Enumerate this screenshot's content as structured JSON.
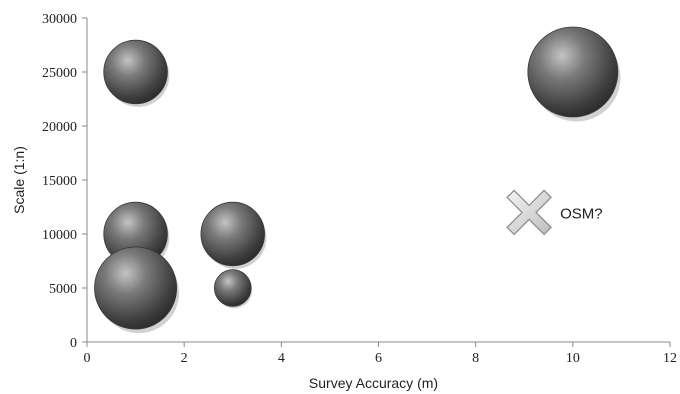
{
  "chart_data": {
    "type": "bubble",
    "title": "",
    "xlabel": "Survey Accuracy (m)",
    "ylabel": "Scale (1:n)",
    "xlim": [
      0,
      12
    ],
    "ylim": [
      0,
      30000
    ],
    "x_ticks": [
      0,
      2,
      4,
      6,
      8,
      10,
      12
    ],
    "y_ticks": [
      0,
      5000,
      10000,
      15000,
      20000,
      25000,
      30000
    ],
    "grid": false,
    "legend": "none",
    "bubble_color": "#5a5a5a",
    "points": [
      {
        "x": 1,
        "y": 25000,
        "size": 0.3
      },
      {
        "x": 1,
        "y": 10000,
        "size": 0.3
      },
      {
        "x": 1,
        "y": 5000,
        "size": 0.5
      },
      {
        "x": 3,
        "y": 10000,
        "size": 0.3
      },
      {
        "x": 3,
        "y": 5000,
        "size": 0.1
      },
      {
        "x": 10,
        "y": 25000,
        "size": 0.6
      }
    ],
    "annotations": [
      {
        "x": 9.1,
        "y": 12000,
        "marker": "cross",
        "text": "OSM?"
      }
    ]
  }
}
